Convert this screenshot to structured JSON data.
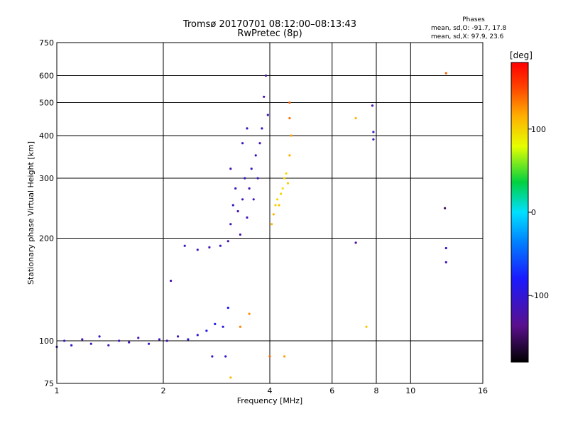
{
  "chart_data": {
    "type": "scatter",
    "title": "Tromsø 20170701 08:12:00–08:13:43",
    "subtitle": "RwPretec (8p)",
    "xlabel": "Frequency [MHz]",
    "ylabel": "Stationary phase Virtual Height [km]",
    "x_scale": "log",
    "y_scale": "log",
    "xlim": [
      1,
      16
    ],
    "ylim": [
      75,
      750
    ],
    "x_ticks": [
      1,
      2,
      4,
      6,
      8,
      10,
      16
    ],
    "y_ticks": [
      75,
      100,
      200,
      300,
      400,
      500,
      600,
      750
    ],
    "grid": true,
    "phase_stats": {
      "header": "Phases",
      "o_line": "mean, sd,O: -91.7, 17.8",
      "x_line": "mean, sd,X:  97.9, 23.6"
    },
    "colorbar": {
      "label": "[deg]",
      "range": [
        -180,
        180
      ],
      "ticks": [
        100,
        0,
        -100
      ]
    },
    "series": [
      {
        "component": "O",
        "points": [
          [
            1.0,
            96,
            -118
          ],
          [
            1.05,
            100,
            -110
          ],
          [
            1.1,
            97,
            -105
          ],
          [
            1.18,
            101,
            -120
          ],
          [
            1.25,
            98,
            -112
          ],
          [
            1.32,
            103,
            -108
          ],
          [
            1.4,
            97,
            -122
          ],
          [
            1.5,
            100,
            -115
          ],
          [
            1.6,
            99,
            -110
          ],
          [
            1.7,
            102,
            -118
          ],
          [
            1.82,
            98,
            -105
          ],
          [
            1.95,
            101,
            -112
          ],
          [
            2.05,
            100,
            -120
          ],
          [
            2.2,
            103,
            -110
          ],
          [
            2.35,
            101,
            -95
          ],
          [
            2.5,
            104,
            -100
          ],
          [
            2.65,
            107,
            -90
          ],
          [
            2.8,
            112,
            -85
          ],
          [
            2.95,
            110,
            -95
          ],
          [
            3.05,
            125,
            -80
          ],
          [
            2.1,
            150,
            -120
          ],
          [
            2.3,
            190,
            -110
          ],
          [
            2.5,
            185,
            -112
          ],
          [
            2.7,
            188,
            -115
          ],
          [
            2.9,
            190,
            -110
          ],
          [
            3.05,
            196,
            -120
          ],
          [
            3.1,
            220,
            -115
          ],
          [
            3.15,
            250,
            -110
          ],
          [
            3.2,
            280,
            -112
          ],
          [
            3.25,
            240,
            -118
          ],
          [
            3.3,
            205,
            -120
          ],
          [
            3.35,
            260,
            -115
          ],
          [
            3.4,
            300,
            -110
          ],
          [
            3.45,
            230,
            -112
          ],
          [
            3.5,
            280,
            -118
          ],
          [
            3.55,
            320,
            -108
          ],
          [
            3.6,
            260,
            -110
          ],
          [
            3.65,
            350,
            -105
          ],
          [
            3.7,
            300,
            -112
          ],
          [
            3.75,
            380,
            -115
          ],
          [
            3.8,
            420,
            -110
          ],
          [
            3.85,
            520,
            -118
          ],
          [
            3.9,
            600,
            -120
          ],
          [
            3.95,
            460,
            -115
          ],
          [
            3.45,
            420,
            -112
          ],
          [
            3.35,
            380,
            -110
          ],
          [
            3.1,
            320,
            -118
          ],
          [
            7.0,
            194,
            -130
          ],
          [
            7.8,
            490,
            -115
          ],
          [
            7.85,
            410,
            -110
          ],
          [
            7.85,
            390,
            -112
          ],
          [
            12.5,
            245,
            -150
          ],
          [
            12.6,
            187,
            -105
          ],
          [
            12.6,
            170,
            -110
          ],
          [
            3.0,
            90,
            -105
          ],
          [
            2.75,
            90,
            -100
          ]
        ]
      },
      {
        "component": "X",
        "points": [
          [
            4.05,
            220,
            110
          ],
          [
            4.1,
            235,
            112
          ],
          [
            4.15,
            250,
            100
          ],
          [
            4.2,
            260,
            95
          ],
          [
            4.25,
            250,
            105
          ],
          [
            4.3,
            270,
            98
          ],
          [
            4.35,
            280,
            92
          ],
          [
            4.4,
            300,
            100
          ],
          [
            4.45,
            310,
            95
          ],
          [
            4.5,
            290,
            102
          ],
          [
            4.55,
            350,
            115
          ],
          [
            4.6,
            400,
            120
          ],
          [
            4.55,
            450,
            135
          ],
          [
            4.55,
            500,
            140
          ],
          [
            3.3,
            110,
            130
          ],
          [
            3.5,
            120,
            125
          ],
          [
            4.0,
            90,
            140
          ],
          [
            4.4,
            90,
            120
          ],
          [
            3.1,
            78,
            110
          ],
          [
            7.0,
            450,
            110
          ],
          [
            7.5,
            110,
            105
          ],
          [
            12.6,
            610,
            140
          ]
        ]
      }
    ]
  }
}
